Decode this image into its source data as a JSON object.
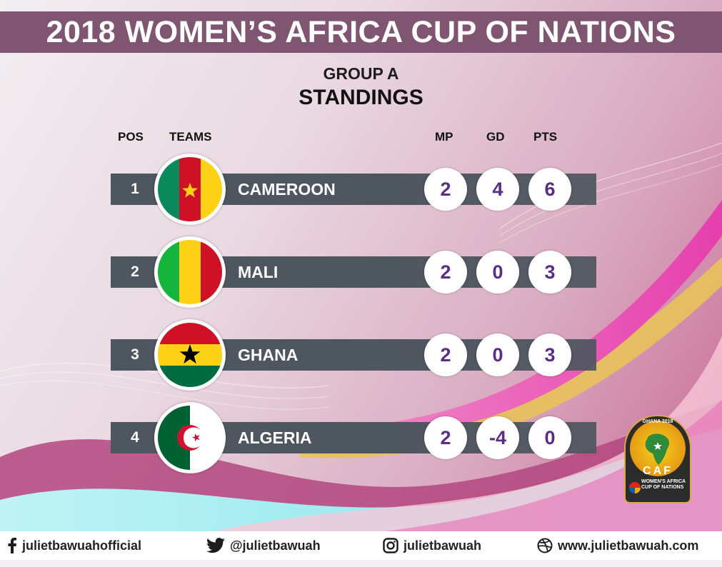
{
  "header": {
    "title": "2018 WOMEN’S AFRICA CUP OF NATIONS"
  },
  "subheader": {
    "group": "GROUP A",
    "section": "STANDINGS"
  },
  "columns": {
    "pos": "POS",
    "teams": "TEAMS",
    "mp": "MP",
    "gd": "GD",
    "pts": "PTS"
  },
  "standings": [
    {
      "pos": "1",
      "team": "CAMEROON",
      "flag": "cameroon-flag-icon",
      "mp": "2",
      "gd": "4",
      "pts": "6"
    },
    {
      "pos": "2",
      "team": "MALI",
      "flag": "mali-flag-icon",
      "mp": "2",
      "gd": "0",
      "pts": "3"
    },
    {
      "pos": "3",
      "team": "GHANA",
      "flag": "ghana-flag-icon",
      "mp": "2",
      "gd": "0",
      "pts": "3"
    },
    {
      "pos": "4",
      "team": "ALGERIA",
      "flag": "algeria-flag-icon",
      "mp": "2",
      "gd": "-4",
      "pts": "0"
    }
  ],
  "logo": {
    "top_text": "GHANA 2018",
    "org": "CAF",
    "subtitle": "WOMEN'S AFRICA CUP OF NATIONS",
    "sponsor": "TOTAL"
  },
  "footer": {
    "facebook": "julietbawuahofficial",
    "twitter": "@julietbawuah",
    "instagram": "julietbawuah",
    "website": "www.julietbawuah.com"
  },
  "colors": {
    "title_bar": "#7f5572",
    "row_bar": "#4e5660",
    "stat_text": "#5a2e88"
  }
}
